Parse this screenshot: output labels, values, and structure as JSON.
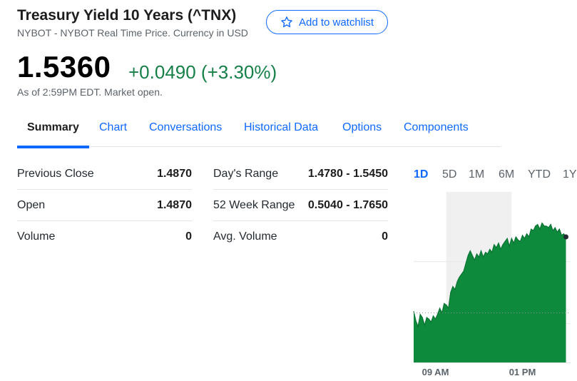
{
  "quote": {
    "title": "Treasury Yield 10 Years (^TNX)",
    "subtitle": "NYBOT - NYBOT Real Time Price. Currency in USD",
    "watchlist_label": "Add to watchlist",
    "price": "1.5360",
    "change": "+0.0490 (+3.30%)",
    "as_of": "As of 2:59PM EDT. Market open."
  },
  "tabs": [
    "Summary",
    "Chart",
    "Conversations",
    "Historical Data",
    "Options",
    "Components"
  ],
  "stats_left": [
    {
      "label": "Previous Close",
      "value": "1.4870"
    },
    {
      "label": "Open",
      "value": "1.4870"
    },
    {
      "label": "Volume",
      "value": "0"
    }
  ],
  "stats_right": [
    {
      "label": "Day's Range",
      "value": "1.4780 - 1.5450"
    },
    {
      "label": "52 Week Range",
      "value": "0.5040 - 1.7650"
    },
    {
      "label": "Avg. Volume",
      "value": "0"
    }
  ],
  "ranges": [
    "1D",
    "5D",
    "1M",
    "6M",
    "YTD",
    "1Y"
  ],
  "colors": {
    "accent": "#0f69ff",
    "positive": "#168049",
    "chart_fill": "#0e8a3c"
  },
  "chart_data": {
    "type": "area",
    "xlabels": [
      "09 AM",
      "01 PM"
    ],
    "x_hours": [
      8.0,
      8.1,
      8.2,
      8.3,
      8.4,
      8.5,
      8.6,
      8.7,
      8.8,
      8.9,
      9.0,
      9.1,
      9.2,
      9.3,
      9.4,
      9.5,
      9.6,
      9.7,
      9.8,
      9.9,
      10.0,
      10.1,
      10.2,
      10.3,
      10.4,
      10.5,
      10.6,
      10.7,
      10.8,
      10.9,
      11.0,
      11.1,
      11.2,
      11.3,
      11.4,
      11.5,
      11.6,
      11.7,
      11.8,
      11.9,
      12.0,
      12.1,
      12.2,
      12.3,
      12.4,
      12.5,
      12.6,
      12.7,
      12.8,
      12.9,
      13.0,
      13.1,
      13.2,
      13.3,
      13.4,
      13.5,
      13.6,
      13.7,
      13.8,
      13.9,
      14.0,
      14.1,
      14.2,
      14.3,
      14.4,
      14.5,
      14.6,
      14.7,
      14.8,
      14.9,
      15.0
    ],
    "values": [
      1.488,
      1.482,
      1.478,
      1.486,
      1.484,
      1.479,
      1.484,
      1.483,
      1.481,
      1.485,
      1.483,
      1.486,
      1.49,
      1.487,
      1.493,
      1.492,
      1.49,
      1.5,
      1.504,
      1.502,
      1.507,
      1.51,
      1.512,
      1.514,
      1.519,
      1.524,
      1.527,
      1.524,
      1.521,
      1.525,
      1.523,
      1.527,
      1.523,
      1.526,
      1.525,
      1.528,
      1.526,
      1.531,
      1.529,
      1.532,
      1.528,
      1.531,
      1.533,
      1.535,
      1.53,
      1.535,
      1.532,
      1.536,
      1.534,
      1.533,
      1.537,
      1.535,
      1.538,
      1.536,
      1.541,
      1.54,
      1.543,
      1.544,
      1.541,
      1.545,
      1.543,
      1.543,
      1.542,
      1.544,
      1.54,
      1.542,
      1.539,
      1.541,
      1.537,
      1.538,
      1.536
    ],
    "prev_close": 1.487,
    "ylim": [
      1.455,
      1.565
    ],
    "xlim": [
      8.0,
      16.0
    ]
  }
}
